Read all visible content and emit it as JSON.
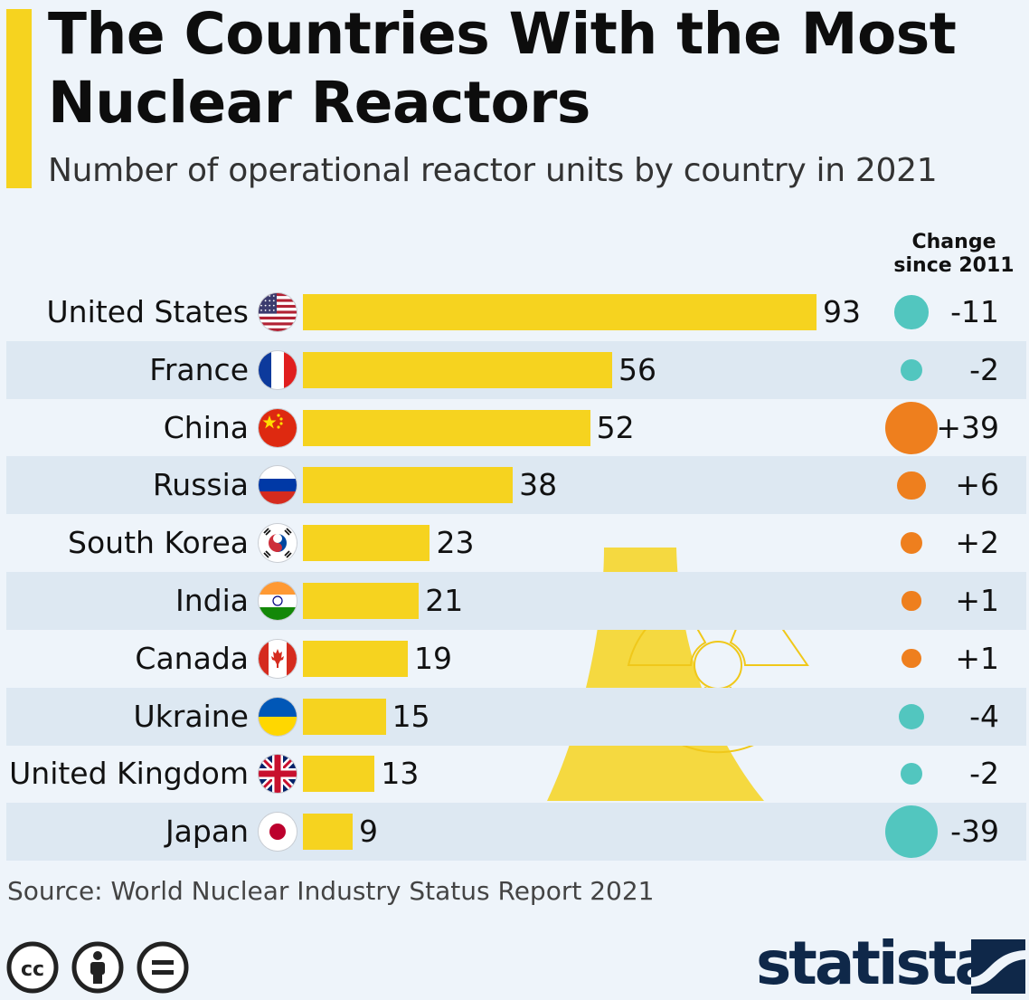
{
  "title": "The Countries With the Most Nuclear Reactors",
  "subtitle": "Number of operational reactor units by country in 2021",
  "change_header": "Change since 2011",
  "source": "Source: World Nuclear Industry Status Report 2021",
  "brand": "statista",
  "colors": {
    "accent": "#f6d31f",
    "bar": "#f6d31f",
    "decrease": "#52c6bf",
    "increase": "#ee7f1e",
    "row_shade": "#dde8f2",
    "background": "#eef4fa",
    "brand": "#0f2849"
  },
  "icons": [
    "cc-icon",
    "attribution-icon",
    "no-derivatives-icon",
    "statista-logo-icon",
    "reactor-tower-icon",
    "radiation-icon"
  ],
  "chart_data": {
    "type": "bar",
    "orientation": "horizontal",
    "categories": [
      "United States",
      "France",
      "China",
      "Russia",
      "South Korea",
      "India",
      "Canada",
      "Ukraine",
      "United Kingdom",
      "Japan"
    ],
    "values": [
      93,
      56,
      52,
      38,
      23,
      21,
      19,
      15,
      13,
      9
    ],
    "change_labels": [
      "-11",
      "-2",
      "+39",
      "+6",
      "+2",
      "+1",
      "+1",
      "-4",
      "-2",
      "-39"
    ],
    "change_values": [
      -11,
      -2,
      39,
      6,
      2,
      1,
      1,
      -4,
      -2,
      -39
    ],
    "flags": [
      "us-flag-icon",
      "france-flag-icon",
      "china-flag-icon",
      "russia-flag-icon",
      "south-korea-flag-icon",
      "india-flag-icon",
      "canada-flag-icon",
      "ukraine-flag-icon",
      "uk-flag-icon",
      "japan-flag-icon"
    ],
    "xlim": [
      0,
      93
    ],
    "grid": false,
    "legend": "none"
  }
}
